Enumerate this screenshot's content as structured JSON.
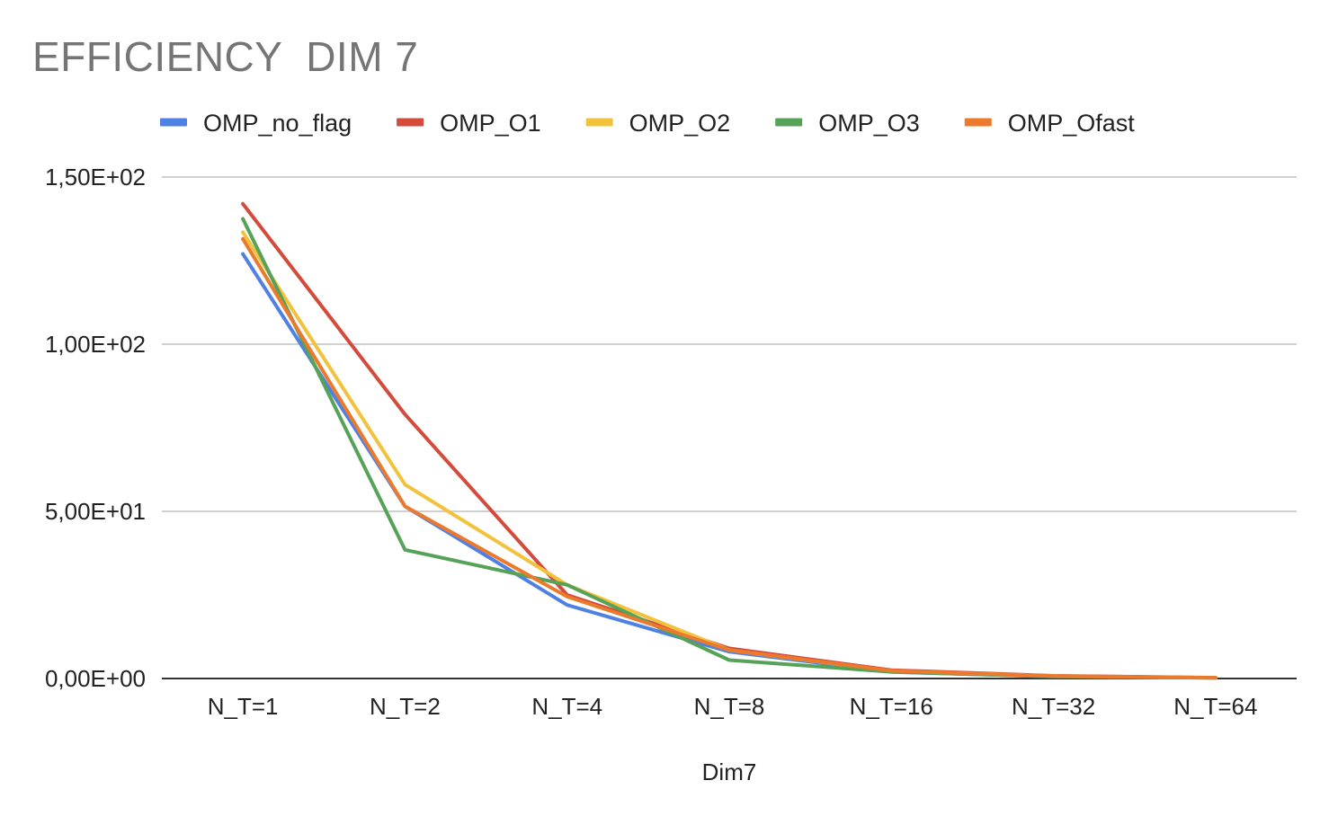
{
  "chart_data": {
    "type": "line",
    "title": "EFFICIENCY  DIM 7",
    "xlabel": "Dim7",
    "ylabel": "",
    "categories": [
      "N_T=1",
      "N_T=2",
      "N_T=4",
      "N_T=8",
      "N_T=16",
      "N_T=32",
      "N_T=64"
    ],
    "ylim": [
      0,
      150
    ],
    "yticks": [
      0,
      50,
      100,
      150
    ],
    "ytick_labels": [
      "0,00E+00",
      "5,00E+01",
      "1,00E+02",
      "1,50E+02"
    ],
    "grid": true,
    "legend_position": "top",
    "series": [
      {
        "name": "OMP_no_flag",
        "color": "#4F81E4",
        "values": [
          127,
          51.5,
          22,
          8,
          2,
          0.6,
          0.2
        ]
      },
      {
        "name": "OMP_O1",
        "color": "#D44B3C",
        "values": [
          142,
          79,
          25,
          9,
          2.5,
          0.8,
          0.25
        ]
      },
      {
        "name": "OMP_O2",
        "color": "#F2C23C",
        "values": [
          133.5,
          58,
          28,
          8.5,
          2.2,
          0.7,
          0.2
        ]
      },
      {
        "name": "OMP_O3",
        "color": "#56A259",
        "values": [
          137.5,
          38.5,
          28,
          5.5,
          2,
          0.6,
          0.2
        ]
      },
      {
        "name": "OMP_Ofast",
        "color": "#EB7A2D",
        "values": [
          131.5,
          51.5,
          24.5,
          8.5,
          2.3,
          0.7,
          0.2
        ]
      }
    ]
  }
}
